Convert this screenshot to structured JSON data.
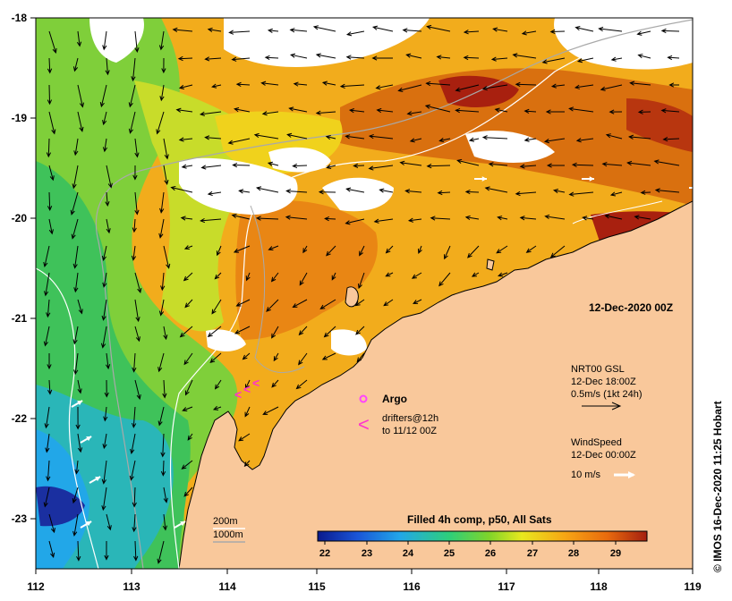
{
  "map": {
    "lon_ticks": [
      "112",
      "113",
      "114",
      "115",
      "116",
      "117",
      "118",
      "119"
    ],
    "lat_ticks": [
      "-18",
      "-19",
      "-20",
      "-21",
      "-22",
      "-23"
    ],
    "timestamp": "12-Dec-2020 00Z",
    "credit": "© IMOS 16-Dec-2020 11:25 Hobart",
    "colors": {
      "land": "#f9c89b",
      "no_data": "#ffffff",
      "contour_200m": "#ffffff",
      "contour_1000m": "#a9a9a9",
      "argo": "#ff44ff",
      "drifter": "#ff33cc"
    }
  },
  "legend": {
    "argo_label": "Argo",
    "drifters_line1": "drifters@12h",
    "drifters_line2": "to 11/12 00Z",
    "current_title": "NRT00 GSL",
    "current_time": "12-Dec 18:00Z",
    "current_scale": "0.5m/s (1kt 24h)",
    "wind_title": "WindSpeed",
    "wind_time": "12-Dec 00:00Z",
    "wind_scale": "10 m/s",
    "contour_200m": "200m",
    "contour_1000m": "1000m"
  },
  "colorbar": {
    "title": "Filled 4h comp, p50, All Sats",
    "labels": [
      "22",
      "23",
      "24",
      "25",
      "26",
      "27",
      "28",
      "29"
    ],
    "stops": [
      "#0a1a8c",
      "#1a55d8",
      "#22a7e8",
      "#2ecf7a",
      "#7fd42a",
      "#e8e81e",
      "#f7a614",
      "#e86a0e",
      "#a41f0f"
    ]
  }
}
